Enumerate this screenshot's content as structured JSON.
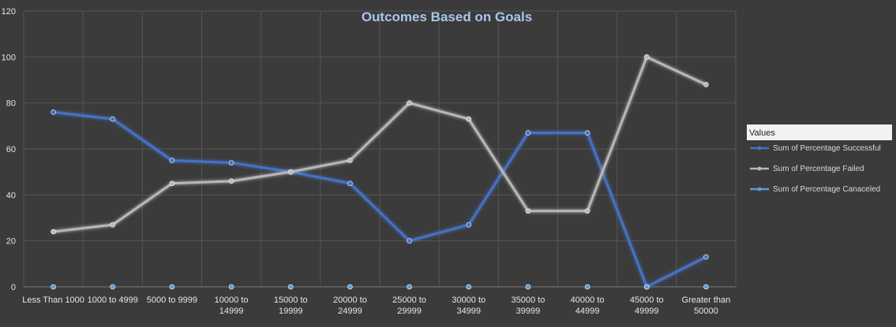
{
  "chart_data": {
    "type": "line",
    "title": "Outcomes Based on Goals",
    "xlabel": "",
    "ylabel": "",
    "ylim": [
      0,
      120
    ],
    "yticks": [
      0,
      20,
      40,
      60,
      80,
      100,
      120
    ],
    "grid": true,
    "legend_placement": "right",
    "legend_title": "Values",
    "categories": [
      "Less Than 1000",
      "1000 to 4999",
      "5000 to 9999",
      "10000 to 14999",
      "15000 to 19999",
      "20000 to 24999",
      "25000 to 29999",
      "30000 to 34999",
      "35000 to 39999",
      "40000 to 44999",
      "45000 to 49999",
      "Greater than 50000"
    ],
    "category_label_lines": [
      [
        "Less Than 1000"
      ],
      [
        "1000 to 4999"
      ],
      [
        "5000 to 9999"
      ],
      [
        "10000 to",
        "14999"
      ],
      [
        "15000 to",
        "19999"
      ],
      [
        "20000 to",
        "24999"
      ],
      [
        "25000 to",
        "29999"
      ],
      [
        "30000 to",
        "34999"
      ],
      [
        "35000 to",
        "39999"
      ],
      [
        "40000 to",
        "44999"
      ],
      [
        "45000 to",
        "49999"
      ],
      [
        "Greater than",
        "50000"
      ]
    ],
    "series": [
      {
        "name": "Sum of Percentage Successful",
        "color": "#4472c4",
        "values": [
          76,
          73,
          55,
          54,
          50,
          45,
          20,
          27,
          67,
          67,
          0,
          13
        ]
      },
      {
        "name": "Sum of Percentage Failed",
        "color": "#b7b7b7",
        "values": [
          24,
          27,
          45,
          46,
          50,
          55,
          80,
          73,
          33,
          33,
          100,
          88
        ]
      },
      {
        "name": "Sum of Percentage Canaceled",
        "color": "#5b9bd5",
        "values": [
          0,
          0,
          0,
          0,
          0,
          0,
          0,
          0,
          0,
          0,
          0,
          0
        ]
      }
    ]
  }
}
